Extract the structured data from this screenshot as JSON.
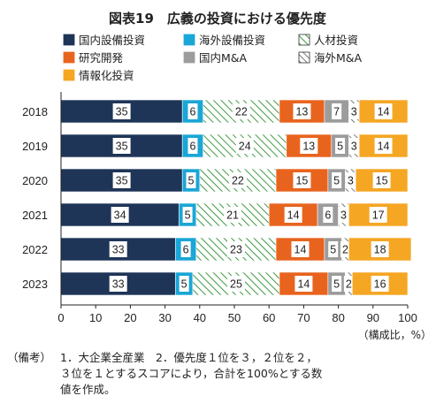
{
  "chart_data": {
    "type": "bar",
    "orientation": "horizontal",
    "stacked": true,
    "title": "図表19　広義の投資における優先度",
    "categories": [
      "2018",
      "2019",
      "2020",
      "2021",
      "2022",
      "2023"
    ],
    "series": [
      {
        "name": "国内設備投資",
        "color": "#1f3557",
        "pattern": "solid",
        "values": [
          35,
          35,
          35,
          34,
          33,
          33
        ]
      },
      {
        "name": "海外設備投資",
        "color": "#1aa6d6",
        "pattern": "solid",
        "values": [
          6,
          6,
          5,
          5,
          6,
          5
        ]
      },
      {
        "name": "人材投資",
        "color": "#3f9a43",
        "pattern": "hatch",
        "values": [
          22,
          24,
          22,
          21,
          23,
          25
        ]
      },
      {
        "name": "研究開発",
        "color": "#e8641e",
        "pattern": "solid",
        "values": [
          13,
          13,
          15,
          14,
          14,
          14
        ]
      },
      {
        "name": "国内M&A",
        "color": "#9c9c9c",
        "pattern": "solid",
        "values": [
          7,
          5,
          5,
          6,
          5,
          5
        ]
      },
      {
        "name": "海外M&A",
        "color": "#555555",
        "pattern": "hatch",
        "values": [
          3,
          3,
          3,
          3,
          2,
          2
        ]
      },
      {
        "name": "情報化投資",
        "color": "#f5a623",
        "pattern": "solid",
        "values": [
          14,
          14,
          15,
          17,
          18,
          16
        ]
      }
    ],
    "xlim": [
      0,
      100
    ],
    "xticks": [
      0,
      10,
      20,
      30,
      40,
      50,
      60,
      70,
      80,
      90,
      100
    ],
    "xlabel": "（構成比，%）",
    "legend_position": "top",
    "grid": false
  },
  "note": {
    "head": "（備考）",
    "body": "1．大企業全産業　2．優先度１位を３，２位を２，\n３位を１とするスコアにより，合計を100%とする数\n値を作成。"
  }
}
